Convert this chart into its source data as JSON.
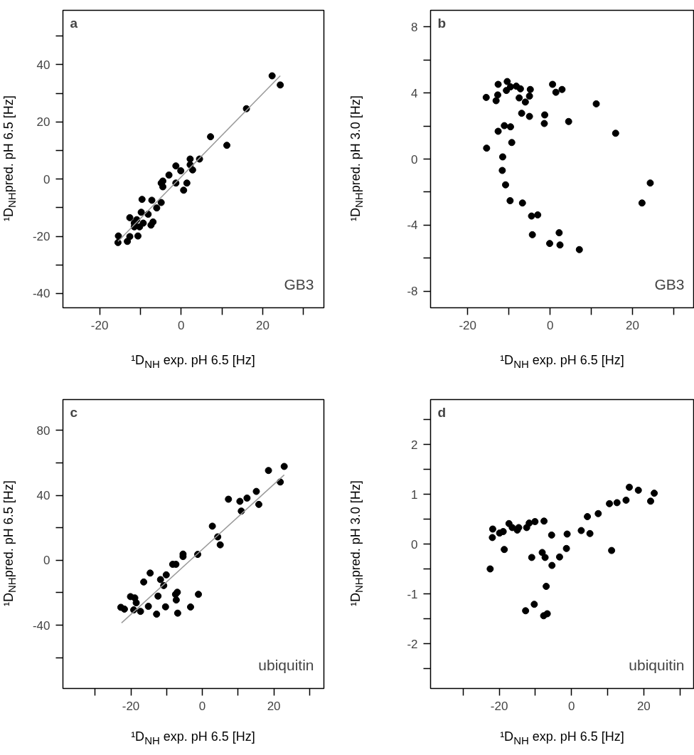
{
  "chart_data": [
    {
      "type": "scatter",
      "title": "a",
      "xlabel": "¹D$_{NH}$ exp. pH 6.5 [Hz]",
      "ylabel": "¹D$_{NH}$pred. pH 6.5 [Hz]",
      "annotations": [
        "GB3"
      ],
      "xlim": [
        -29,
        35
      ],
      "ylim": [
        -45,
        59
      ],
      "xticks": [
        -20,
        {
          "value": -10,
          "label": null
        },
        0,
        {
          "value": 10,
          "label": null
        },
        20,
        {
          "value": 30,
          "label": null
        }
      ],
      "yticks": [
        -40,
        {
          "value": -30,
          "label": null
        },
        -20,
        {
          "value": -10,
          "label": null
        },
        0,
        {
          "value": 10,
          "label": null
        },
        20,
        {
          "value": 30,
          "label": null
        },
        40,
        {
          "value": 50,
          "label": null
        }
      ],
      "series": [
        {
          "marker": "circle",
          "color": "#000000",
          "x": [
            22.3,
            24.3,
            16.0,
            7.2,
            11.2,
            2.2,
            4.5,
            2.2,
            2.8,
            -1.3,
            -0.1,
            -3.0,
            -4.5,
            -4.9,
            -4.5,
            -1.3,
            1.4,
            0.6,
            -9.6,
            -7.2,
            -4.9,
            -6.0,
            -9.8,
            -8.1,
            -12.6,
            -10.9,
            -11.5,
            -9.3,
            -6.9,
            -7.4,
            -10.2,
            -11.5,
            -15.4,
            -12.6,
            -10.6,
            -15.5,
            -13.2
          ],
          "values": [
            36.1,
            32.9,
            24.6,
            14.8,
            11.8,
            7.0,
            7.0,
            5.0,
            3.2,
            4.6,
            2.9,
            1.4,
            -0.7,
            -1.4,
            -2.7,
            -1.4,
            -1.4,
            -3.9,
            -7.1,
            -7.4,
            -8.2,
            -10.1,
            -11.6,
            -12.3,
            -13.5,
            -14.2,
            -15.4,
            -15.4,
            -15.0,
            -16.1,
            -16.7,
            -16.7,
            -19.9,
            -20.1,
            -19.9,
            -22.2,
            -21.8
          ]
        },
        {
          "type": "line",
          "color": "#999999",
          "x": [
            -15.5,
            24.3
          ],
          "values": [
            -21.8,
            36.1
          ]
        }
      ]
    },
    {
      "type": "scatter",
      "title": "b",
      "xlabel": "¹D$_{NH}$ exp. pH 6.5 [Hz]",
      "ylabel": "¹D$_{NH}$pred. pH 3.0 [Hz]",
      "annotations": [
        "GB3"
      ],
      "xlim": [
        -29,
        35
      ],
      "ylim": [
        -9,
        9
      ],
      "xticks": [
        -20,
        {
          "value": -10,
          "label": null
        },
        0,
        {
          "value": 10,
          "label": null
        },
        20,
        {
          "value": 30,
          "label": null
        }
      ],
      "yticks": [
        -8,
        {
          "value": -6,
          "label": null
        },
        -4,
        {
          "value": -2,
          "label": null
        },
        0,
        {
          "value": 2,
          "label": null
        },
        4,
        {
          "value": 6,
          "label": null
        },
        8
      ],
      "series": [
        {
          "marker": "circle",
          "color": "#000000",
          "x": [
            -15.5,
            -12.6,
            -10.4,
            -12.7,
            -13.1,
            -10.6,
            -9.6,
            -8.2,
            -7.2,
            -4.8,
            -7.5,
            -5.0,
            -6.0,
            0.6,
            1.4,
            2.9,
            11.2,
            -6.9,
            -5.0,
            -1.3,
            -1.4,
            4.5,
            15.9,
            -11.1,
            -9.6,
            -12.6,
            -9.3,
            -15.4,
            -11.5,
            -11.6,
            -10.8,
            24.3,
            -9.7,
            -6.7,
            22.3,
            -4.5,
            -3.0,
            -4.3,
            2.2,
            -0.1,
            2.4,
            7.1
          ],
          "values": [
            3.73,
            4.52,
            4.69,
            3.88,
            3.53,
            4.15,
            4.37,
            4.41,
            4.25,
            4.21,
            3.7,
            3.81,
            3.45,
            4.52,
            4.04,
            4.21,
            3.34,
            2.77,
            2.58,
            2.67,
            2.15,
            2.27,
            1.56,
            2.02,
            1.95,
            1.68,
            1.0,
            0.66,
            0.13,
            -0.69,
            -1.56,
            -1.45,
            -2.52,
            -2.66,
            -2.66,
            -3.45,
            -3.38,
            -4.58,
            -4.46,
            -5.11,
            -5.2,
            -5.48
          ]
        }
      ]
    },
    {
      "type": "scatter",
      "title": "c",
      "xlabel": "¹D$_{NH}$ exp. pH 6.5 [Hz]",
      "ylabel": "¹D$_{NH}$pred. pH 6.5 [Hz]",
      "annotations": [
        "ubiquitin"
      ],
      "xlim": [
        -39,
        34
      ],
      "ylim": [
        -79,
        99
      ],
      "xticks": [
        {
          "value": -30,
          "label": null
        },
        -20,
        {
          "value": -10,
          "label": null
        },
        0,
        {
          "value": 10,
          "label": null
        },
        20,
        {
          "value": 30,
          "label": null
        }
      ],
      "yticks": [
        {
          "value": -60,
          "label": null
        },
        -40,
        {
          "value": -20,
          "label": null
        },
        0,
        {
          "value": 20,
          "label": null
        },
        40,
        {
          "value": 60,
          "label": null
        },
        80
      ],
      "series": [
        {
          "marker": "circle",
          "color": "#000000",
          "x": [
            22.9,
            18.5,
            21.8,
            7.3,
            10.5,
            12.5,
            15.1,
            15.8,
            10.9,
            2.8,
            4.3,
            5.0,
            -5.4,
            -5.4,
            -1.3,
            -8.3,
            -7.4,
            -14.6,
            -10.1,
            -11.7,
            -10.8,
            -16.4,
            -20.1,
            -18.9,
            -18.5,
            -12.4,
            -7.5,
            -7.0,
            -7.3,
            -1.1,
            -22.8,
            -21.8,
            -19.2,
            -17.3,
            -15.1,
            -12.8,
            -10.3,
            -6.9,
            -3.3
          ],
          "values": [
            57.8,
            55.3,
            48.2,
            37.6,
            36.3,
            38.3,
            42.4,
            34.4,
            30.3,
            21.0,
            14.4,
            9.5,
            3.8,
            2.3,
            3.6,
            -2.5,
            -2.5,
            -7.9,
            -9.0,
            -11.9,
            -15.6,
            -13.4,
            -22.4,
            -23.2,
            -26.2,
            -22.1,
            -21.0,
            -19.7,
            -24.5,
            -21.0,
            -29.0,
            -30.1,
            -30.6,
            -31.5,
            -28.4,
            -33.2,
            -28.7,
            -32.6,
            -28.8
          ]
        },
        {
          "type": "line",
          "color": "#999999",
          "x": [
            -22.6,
            22.9
          ],
          "values": [
            -38.6,
            52.6
          ]
        }
      ]
    },
    {
      "type": "scatter",
      "title": "d",
      "xlabel": "¹D$_{NH}$ exp. pH 6.5 [Hz]",
      "ylabel": "¹D$_{NH}$pred. pH 3.0 [Hz]",
      "annotations": [
        "ubiquitin"
      ],
      "xlim": [
        -39,
        34
      ],
      "ylim": [
        -2.9,
        2.9
      ],
      "xticks": [
        {
          "value": -30,
          "label": null
        },
        -20,
        {
          "value": -10,
          "label": null
        },
        0,
        {
          "value": 10,
          "label": null
        },
        20,
        {
          "value": 30,
          "label": null
        }
      ],
      "yticks": [
        {
          "value": -2.5,
          "label": null
        },
        -2,
        {
          "value": -1.5,
          "label": null
        },
        -1,
        {
          "value": -0.5,
          "label": null
        },
        0,
        {
          "value": 0.5,
          "label": null
        },
        1,
        {
          "value": 1.5,
          "label": null
        },
        2,
        {
          "value": 2.5,
          "label": null
        }
      ],
      "series": [
        {
          "marker": "circle",
          "color": "#000000",
          "x": [
            16.0,
            18.5,
            22.9,
            21.9,
            15.1,
            12.6,
            10.5,
            7.4,
            4.4,
            2.7,
            5.1,
            -1.2,
            -5.5,
            -7.6,
            -10.1,
            -11.7,
            -12.4,
            -14.6,
            -15.0,
            -16.4,
            -17.3,
            -18.9,
            -19.9,
            -21.8,
            -21.9,
            -18.6,
            -1.4,
            11.1,
            -8.1,
            -7.3,
            -11.0,
            -3.3,
            -5.4,
            -22.5,
            -7.0,
            -10.3,
            -12.7,
            -7.7,
            -6.7
          ],
          "values": [
            1.14,
            1.08,
            1.02,
            0.86,
            0.88,
            0.83,
            0.81,
            0.61,
            0.55,
            0.27,
            0.21,
            0.2,
            0.18,
            0.46,
            0.45,
            0.42,
            0.33,
            0.33,
            0.28,
            0.33,
            0.41,
            0.25,
            0.22,
            0.3,
            0.13,
            -0.11,
            -0.09,
            -0.13,
            -0.17,
            -0.27,
            -0.27,
            -0.26,
            -0.43,
            -0.5,
            -0.85,
            -1.21,
            -1.34,
            -1.44,
            -1.4
          ]
        }
      ]
    }
  ]
}
